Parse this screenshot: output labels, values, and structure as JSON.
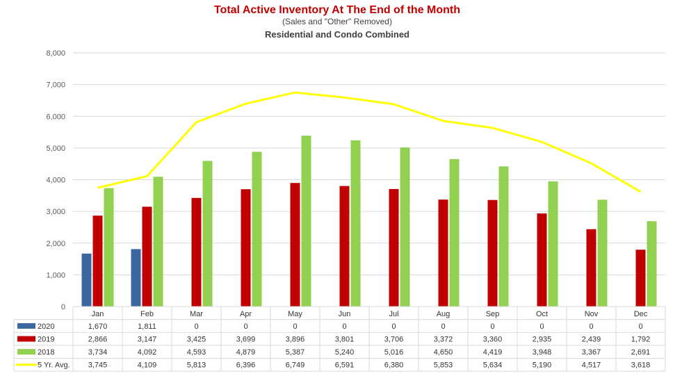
{
  "chart_data": {
    "type": "bar",
    "title": "Total Active Inventory At The End of the Month",
    "subtitle": "(Sales and \"Other\" Removed)",
    "subtitle2": "Residential and Condo Combined",
    "categories": [
      "Jan",
      "Feb",
      "Mar",
      "Apr",
      "May",
      "Jun",
      "Jul",
      "Aug",
      "Sep",
      "Oct",
      "Nov",
      "Dec"
    ],
    "ylim": [
      0,
      8000
    ],
    "yticks": [
      "0",
      "1,000",
      "2,000",
      "3,000",
      "4,000",
      "5,000",
      "6,000",
      "7,000",
      "8,000"
    ],
    "grid": true,
    "legend": "data-table",
    "series": [
      {
        "name": "2020",
        "kind": "bar",
        "color": "#3a67a0",
        "values": [
          1670,
          1811,
          0,
          0,
          0,
          0,
          0,
          0,
          0,
          0,
          0,
          0
        ],
        "labels": [
          "1,670",
          "1,811",
          "0",
          "0",
          "0",
          "0",
          "0",
          "0",
          "0",
          "0",
          "0",
          "0"
        ]
      },
      {
        "name": "2019",
        "kind": "bar",
        "color": "#c00000",
        "values": [
          2866,
          3147,
          3425,
          3699,
          3896,
          3801,
          3706,
          3372,
          3360,
          2935,
          2439,
          1792
        ],
        "labels": [
          "2,866",
          "3,147",
          "3,425",
          "3,699",
          "3,896",
          "3,801",
          "3,706",
          "3,372",
          "3,360",
          "2,935",
          "2,439",
          "1,792"
        ]
      },
      {
        "name": "2018",
        "kind": "bar",
        "color": "#92d050",
        "values": [
          3734,
          4092,
          4593,
          4879,
          5387,
          5240,
          5016,
          4650,
          4419,
          3948,
          3367,
          2691
        ],
        "labels": [
          "3,734",
          "4,092",
          "4,593",
          "4,879",
          "5,387",
          "5,240",
          "5,016",
          "4,650",
          "4,419",
          "3,948",
          "3,367",
          "2,691"
        ]
      },
      {
        "name": "5 Yr. Avg.",
        "kind": "line",
        "color": "#ffff00",
        "values": [
          3745,
          4109,
          5813,
          6396,
          6749,
          6591,
          6380,
          5853,
          5634,
          5190,
          4517,
          3618
        ],
        "labels": [
          "3,745",
          "4,109",
          "5,813",
          "6,396",
          "6,749",
          "6,591",
          "6,380",
          "5,853",
          "5,634",
          "5,190",
          "4,517",
          "3,618"
        ]
      }
    ]
  }
}
